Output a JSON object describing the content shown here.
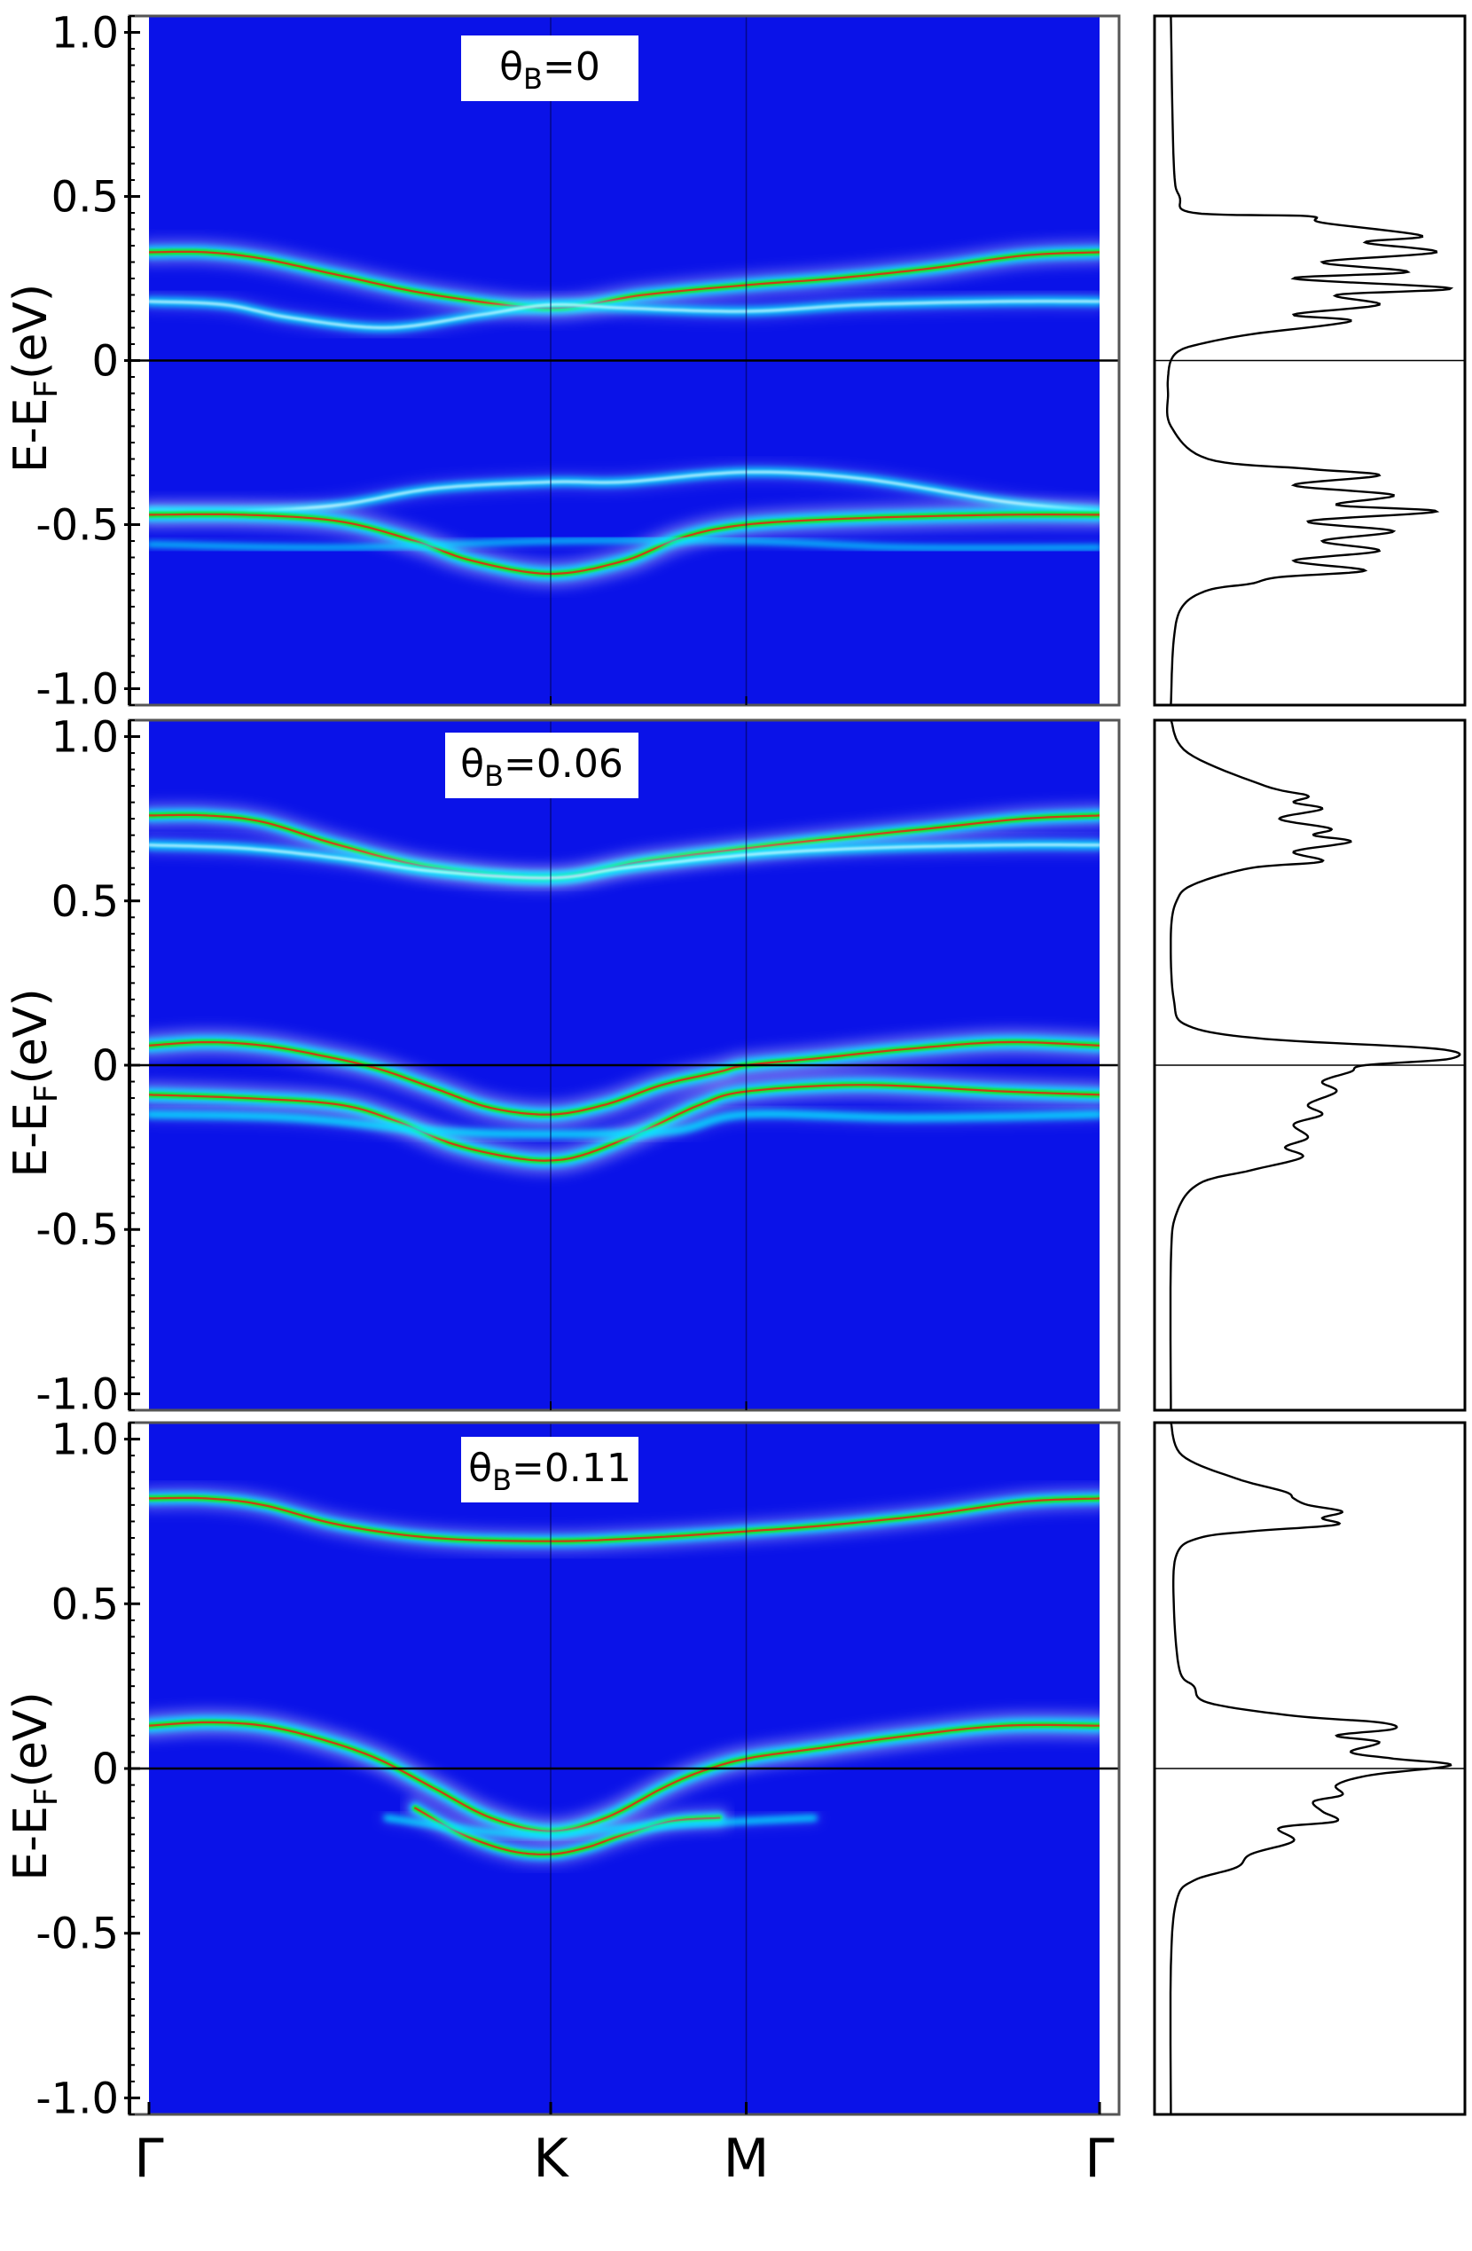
{
  "chart_data": {
    "type": "heatmap",
    "description_free": true,
    "kpoints": [
      "Γ",
      "K",
      "M",
      "Γ"
    ],
    "kpoint_positions": [
      0,
      0.4226,
      0.6283,
      1.0
    ],
    "y_tick_labels": [
      "1.0",
      "0.5",
      "0",
      "-0.5",
      "-1.0"
    ],
    "y_tick_values": [
      1.0,
      0.5,
      0.0,
      -0.5,
      -1.0
    ],
    "ylim": [
      -1.05,
      1.05
    ],
    "ylabel_main": "E-E",
    "ylabel_sub": "F",
    "ylabel_unit": "(eV)",
    "colors": {
      "background": "#0a12e8",
      "cyan": "#00e6ff",
      "green": "#1ee61e",
      "red": "#e62214",
      "fermi_line": "#000000"
    },
    "panels": [
      {
        "theta_symbol": "θ",
        "theta_sub": "B",
        "theta_value": "=0",
        "bands": [
          {
            "k": [
              0,
              0.06,
              0.12,
              0.2,
              0.3,
              0.4226,
              0.52,
              0.6283,
              0.72,
              0.82,
              0.92,
              1.0
            ],
            "E": [
              0.33,
              0.33,
              0.31,
              0.26,
              0.2,
              0.16,
              0.2,
              0.23,
              0.25,
              0.28,
              0.32,
              0.33
            ],
            "w": 0.9
          },
          {
            "k": [
              0,
              0.08,
              0.15,
              0.25,
              0.35,
              0.4226,
              0.5,
              0.6283,
              0.75,
              0.9,
              1.0
            ],
            "E": [
              0.18,
              0.17,
              0.13,
              0.1,
              0.14,
              0.17,
              0.16,
              0.15,
              0.17,
              0.18,
              0.18
            ],
            "w": 0.55
          },
          {
            "k": [
              0,
              0.1,
              0.2,
              0.3,
              0.4226,
              0.5,
              0.6283,
              0.75,
              0.9,
              1.0
            ],
            "E": [
              -0.46,
              -0.46,
              -0.44,
              -0.39,
              -0.37,
              -0.37,
              -0.34,
              -0.36,
              -0.43,
              -0.46
            ],
            "w": 0.55
          },
          {
            "k": [
              0,
              0.1,
              0.2,
              0.28,
              0.34,
              0.4226,
              0.5,
              0.56,
              0.6283,
              0.75,
              0.9,
              1.0
            ],
            "E": [
              -0.47,
              -0.47,
              -0.49,
              -0.55,
              -0.61,
              -0.65,
              -0.61,
              -0.54,
              -0.5,
              -0.48,
              -0.47,
              -0.47
            ],
            "w": 1.0
          },
          {
            "k": [
              0,
              0.2,
              0.4226,
              0.6283,
              0.8,
              1.0
            ],
            "E": [
              -0.56,
              -0.57,
              -0.55,
              -0.55,
              -0.57,
              -0.57
            ],
            "w": 0.25
          }
        ],
        "dos": {
          "E": [
            1.05,
            0.6,
            0.5,
            0.45,
            0.44,
            0.42,
            0.38,
            0.36,
            0.33,
            0.3,
            0.27,
            0.25,
            0.22,
            0.2,
            0.17,
            0.14,
            0.12,
            0.08,
            0.05,
            0.03,
            0.0,
            -0.05,
            -0.1,
            -0.2,
            -0.3,
            -0.33,
            -0.35,
            -0.38,
            -0.41,
            -0.44,
            -0.46,
            -0.49,
            -0.52,
            -0.55,
            -0.58,
            -0.61,
            -0.64,
            -0.66,
            -0.68,
            -0.7,
            -0.75,
            -0.85,
            -1.05
          ],
          "v": [
            0.02,
            0.03,
            0.05,
            0.1,
            0.5,
            0.55,
            0.9,
            0.7,
            0.95,
            0.55,
            0.85,
            0.45,
            1.0,
            0.6,
            0.75,
            0.45,
            0.65,
            0.3,
            0.12,
            0.05,
            0.02,
            0.01,
            0.01,
            0.02,
            0.15,
            0.5,
            0.75,
            0.45,
            0.8,
            0.6,
            0.95,
            0.5,
            0.8,
            0.55,
            0.75,
            0.45,
            0.7,
            0.4,
            0.3,
            0.15,
            0.06,
            0.03,
            0.02
          ]
        }
      },
      {
        "theta_symbol": "θ",
        "theta_sub": "B",
        "theta_value": "=0.06",
        "bands": [
          {
            "k": [
              0,
              0.06,
              0.12,
              0.2,
              0.3,
              0.4226,
              0.52,
              0.6283,
              0.72,
              0.82,
              0.92,
              1.0
            ],
            "E": [
              0.76,
              0.76,
              0.74,
              0.67,
              0.6,
              0.57,
              0.62,
              0.66,
              0.69,
              0.72,
              0.75,
              0.76
            ],
            "w": 0.9
          },
          {
            "k": [
              0,
              0.1,
              0.2,
              0.3,
              0.4226,
              0.5,
              0.6283,
              0.75,
              0.9,
              1.0
            ],
            "E": [
              0.67,
              0.66,
              0.63,
              0.59,
              0.57,
              0.6,
              0.64,
              0.66,
              0.67,
              0.67
            ],
            "w": 0.6
          },
          {
            "k": [
              0,
              0.06,
              0.12,
              0.18,
              0.24,
              0.3,
              0.36,
              0.4226,
              0.48,
              0.54,
              0.6,
              0.6283,
              0.7,
              0.8,
              0.9,
              1.0
            ],
            "E": [
              0.06,
              0.07,
              0.06,
              0.03,
              -0.01,
              -0.07,
              -0.13,
              -0.15,
              -0.12,
              -0.06,
              -0.02,
              0.0,
              0.02,
              0.05,
              0.07,
              0.06
            ],
            "w": 1.0
          },
          {
            "k": [
              0,
              0.1,
              0.2,
              0.26,
              0.32,
              0.38,
              0.4226,
              0.46,
              0.52,
              0.58,
              0.6283,
              0.75,
              0.9,
              1.0
            ],
            "E": [
              -0.09,
              -0.1,
              -0.12,
              -0.17,
              -0.24,
              -0.28,
              -0.29,
              -0.27,
              -0.2,
              -0.12,
              -0.08,
              -0.06,
              -0.08,
              -0.09
            ],
            "w": 1.0
          },
          {
            "k": [
              0,
              0.15,
              0.3,
              0.4226,
              0.55,
              0.6283,
              0.8,
              1.0
            ],
            "E": [
              -0.15,
              -0.16,
              -0.2,
              -0.21,
              -0.2,
              -0.15,
              -0.16,
              -0.15
            ],
            "w": 0.45
          }
        ],
        "dos": {
          "E": [
            1.05,
            0.95,
            0.85,
            0.82,
            0.8,
            0.78,
            0.75,
            0.72,
            0.7,
            0.68,
            0.65,
            0.62,
            0.6,
            0.55,
            0.5,
            0.4,
            0.2,
            0.12,
            0.08,
            0.05,
            0.02,
            0.0,
            -0.02,
            -0.05,
            -0.08,
            -0.12,
            -0.15,
            -0.18,
            -0.22,
            -0.25,
            -0.28,
            -0.32,
            -0.36,
            -0.45,
            -0.6,
            -1.05
          ],
          "v": [
            0.02,
            0.08,
            0.35,
            0.5,
            0.45,
            0.55,
            0.4,
            0.58,
            0.52,
            0.65,
            0.45,
            0.55,
            0.3,
            0.1,
            0.04,
            0.02,
            0.03,
            0.08,
            0.35,
            0.95,
            1.0,
            0.7,
            0.65,
            0.55,
            0.6,
            0.5,
            0.55,
            0.45,
            0.5,
            0.42,
            0.48,
            0.3,
            0.12,
            0.04,
            0.02,
            0.02
          ]
        }
      },
      {
        "theta_symbol": "θ",
        "theta_sub": "B",
        "theta_value": "=0.11",
        "bands": [
          {
            "k": [
              0,
              0.06,
              0.12,
              0.2,
              0.3,
              0.4226,
              0.52,
              0.6283,
              0.72,
              0.82,
              0.92,
              1.0
            ],
            "E": [
              0.82,
              0.82,
              0.8,
              0.74,
              0.7,
              0.69,
              0.7,
              0.72,
              0.74,
              0.77,
              0.81,
              0.82
            ],
            "w": 0.85
          },
          {
            "k": [
              0,
              0.06,
              0.12,
              0.18,
              0.24,
              0.3,
              0.36,
              0.4226,
              0.48,
              0.54,
              0.58,
              0.6283,
              0.7,
              0.8,
              0.9,
              1.0
            ],
            "E": [
              0.13,
              0.14,
              0.13,
              0.09,
              0.03,
              -0.06,
              -0.15,
              -0.19,
              -0.15,
              -0.06,
              -0.01,
              0.03,
              0.06,
              0.1,
              0.13,
              0.13
            ],
            "w": 1.0
          },
          {
            "k": [
              0.28,
              0.33,
              0.38,
              0.4226,
              0.46,
              0.5,
              0.55,
              0.6
            ],
            "E": [
              -0.12,
              -0.2,
              -0.25,
              -0.26,
              -0.24,
              -0.2,
              -0.16,
              -0.15
            ],
            "w": 0.8
          },
          {
            "k": [
              0.25,
              0.35,
              0.4226,
              0.5,
              0.6283,
              0.7
            ],
            "E": [
              -0.15,
              -0.19,
              -0.2,
              -0.18,
              -0.16,
              -0.15
            ],
            "w": 0.35
          }
        ],
        "dos": {
          "E": [
            1.05,
            0.95,
            0.88,
            0.84,
            0.82,
            0.8,
            0.78,
            0.76,
            0.74,
            0.72,
            0.7,
            0.65,
            0.5,
            0.3,
            0.25,
            0.2,
            0.16,
            0.14,
            0.12,
            0.1,
            0.08,
            0.05,
            0.03,
            0.01,
            -0.02,
            -0.05,
            -0.08,
            -0.1,
            -0.13,
            -0.16,
            -0.18,
            -0.22,
            -0.26,
            -0.3,
            -0.34,
            -0.4,
            -0.6,
            -1.05
          ],
          "v": [
            0.02,
            0.06,
            0.25,
            0.42,
            0.45,
            0.5,
            0.62,
            0.55,
            0.6,
            0.3,
            0.12,
            0.04,
            0.03,
            0.05,
            0.1,
            0.15,
            0.45,
            0.75,
            0.8,
            0.6,
            0.75,
            0.65,
            0.8,
            1.0,
            0.72,
            0.6,
            0.62,
            0.52,
            0.55,
            0.6,
            0.4,
            0.45,
            0.3,
            0.25,
            0.1,
            0.04,
            0.02,
            0.02
          ]
        }
      }
    ]
  }
}
